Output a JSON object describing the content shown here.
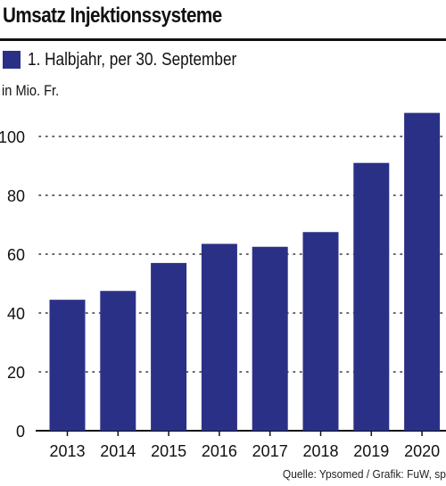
{
  "chart_data": {
    "type": "bar",
    "title": "Umsatz Injektionssysteme",
    "subtitle": "",
    "xlabel": "",
    "ylabel": "in Mio. Fr.",
    "categories": [
      "2013",
      "2014",
      "2015",
      "2016",
      "2017",
      "2018",
      "2019",
      "2020"
    ],
    "series": [
      {
        "name": "1. Halbjahr, per 30. September",
        "values": [
          44.5,
          47.5,
          57,
          63.5,
          62.5,
          67.5,
          91,
          108
        ],
        "color": "#2b3087"
      }
    ],
    "ylim": [
      0,
      110
    ],
    "yticks": [
      "0",
      "20",
      "40",
      "60",
      "80",
      "100"
    ],
    "grid": true,
    "legend": "top-left"
  },
  "source": "Quelle: Ypsomed / Grafik: FuW, sp"
}
